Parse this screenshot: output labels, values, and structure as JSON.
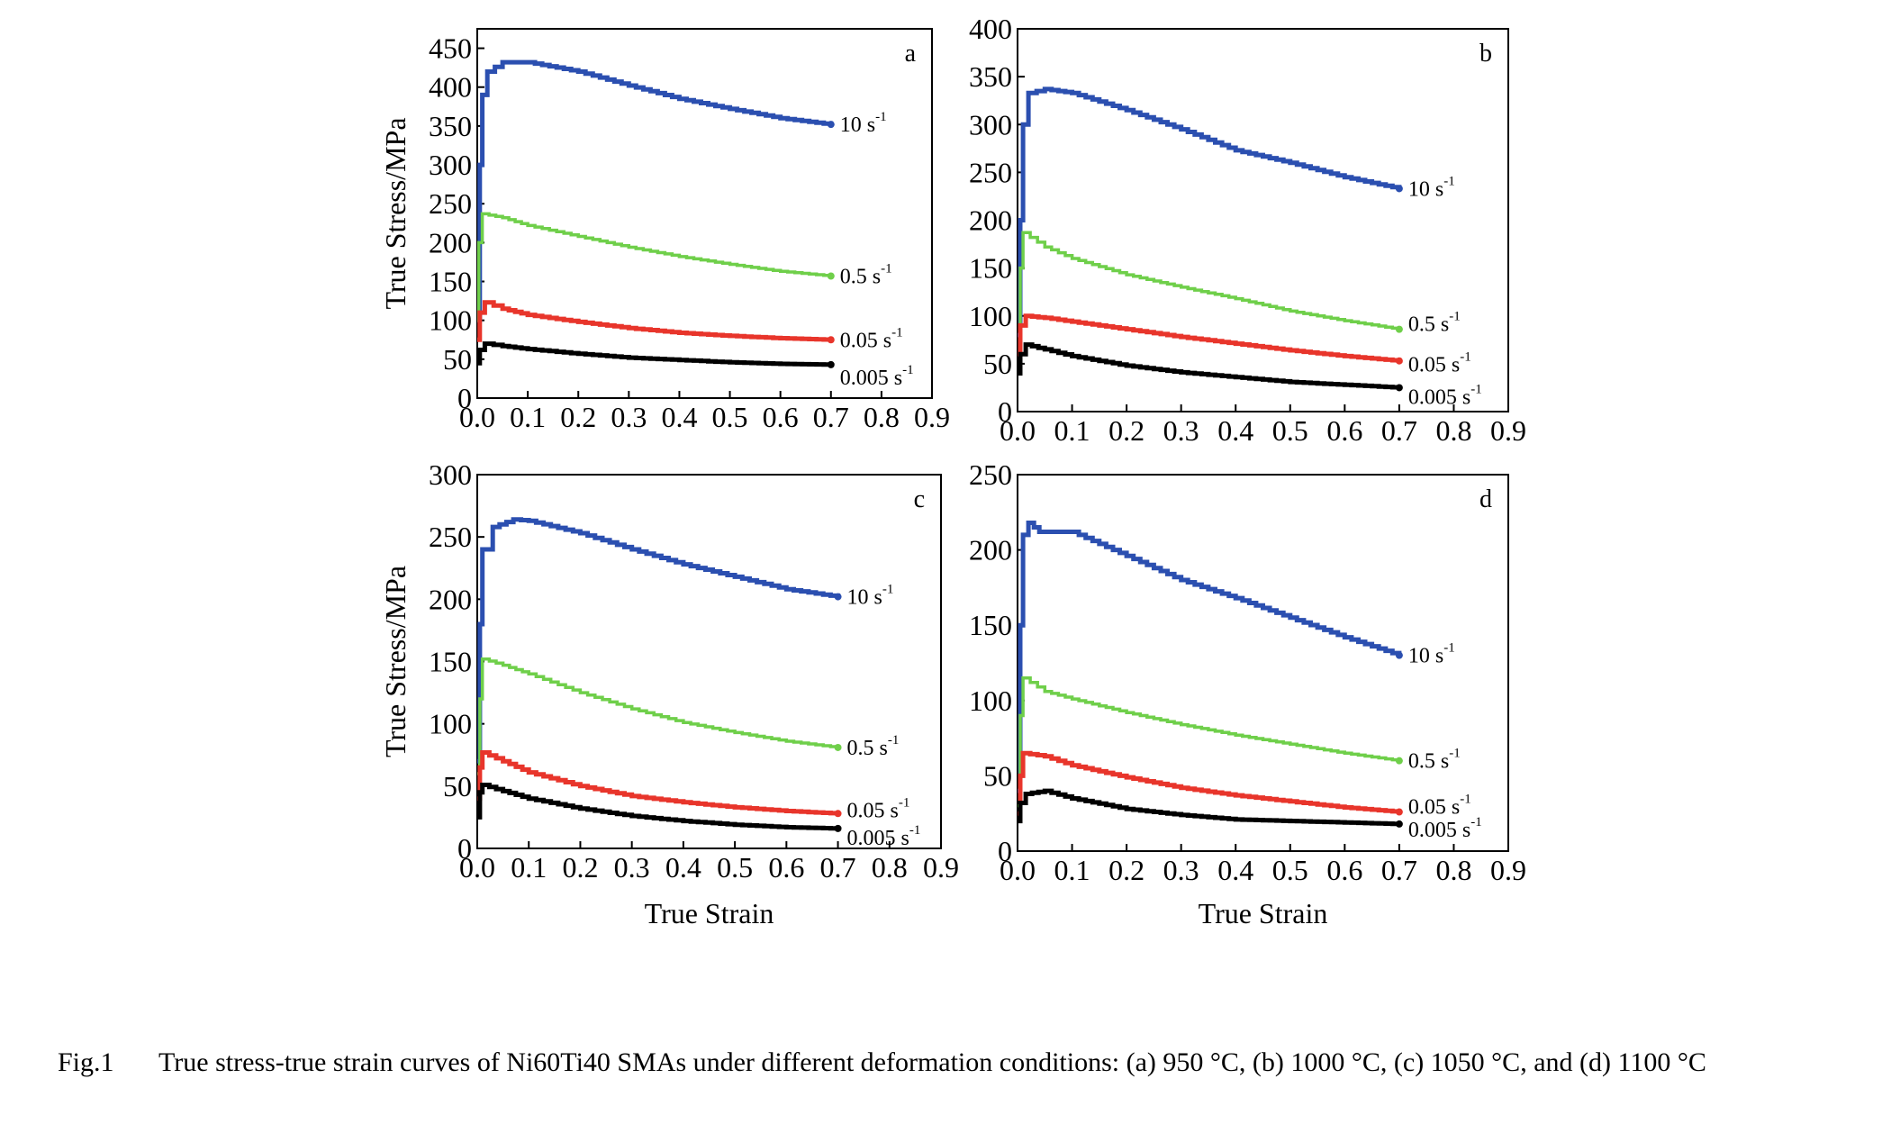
{
  "figure": {
    "caption_label": "Fig.1",
    "caption_text": "True stress-true strain curves of Ni60Ti40 SMAs under different deformation conditions: (a) 950 °C, (b) 1000 °C, (c) 1050 °C, and (d) 1100 °C"
  },
  "colors": {
    "10 s-1": "#2b4fb0",
    "0.5 s-1": "#6fcf4a",
    "0.05 s-1": "#e8352b",
    "0.005 s-1": "#000000"
  },
  "chart_data": [
    {
      "type": "line",
      "panel": "a",
      "xlabel": "",
      "ylabel": "True Stress/MPa",
      "xlim": [
        0,
        0.9
      ],
      "ylim": [
        0,
        475
      ],
      "xticks": [
        "0.0",
        "0.1",
        "0.2",
        "0.3",
        "0.4",
        "0.5",
        "0.6",
        "0.7",
        "0.8",
        "0.9"
      ],
      "yticks": [
        "0",
        "50",
        "100",
        "150",
        "200",
        "250",
        "300",
        "350",
        "400",
        "450"
      ],
      "series": [
        {
          "name": "10 s-1",
          "label_main": "10 s",
          "label_sup": "-1",
          "points": [
            [
              0,
              100
            ],
            [
              0.005,
              300
            ],
            [
              0.01,
              390
            ],
            [
              0.02,
              420
            ],
            [
              0.05,
              432
            ],
            [
              0.1,
              432
            ],
            [
              0.2,
              420
            ],
            [
              0.3,
              402
            ],
            [
              0.4,
              385
            ],
            [
              0.5,
              372
            ],
            [
              0.6,
              360
            ],
            [
              0.7,
              352
            ]
          ]
        },
        {
          "name": "0.5 s-1",
          "label_main": "0.5 s",
          "label_sup": "-1",
          "points": [
            [
              0,
              100
            ],
            [
              0.003,
              200
            ],
            [
              0.01,
              237
            ],
            [
              0.05,
              232
            ],
            [
              0.1,
              222
            ],
            [
              0.2,
              208
            ],
            [
              0.3,
              194
            ],
            [
              0.4,
              182
            ],
            [
              0.5,
              172
            ],
            [
              0.6,
              163
            ],
            [
              0.7,
              157
            ]
          ]
        },
        {
          "name": "0.05 s-1",
          "label_main": "0.05 s",
          "label_sup": "-1",
          "points": [
            [
              0,
              75
            ],
            [
              0.005,
              110
            ],
            [
              0.015,
              123
            ],
            [
              0.05,
              115
            ],
            [
              0.1,
              107
            ],
            [
              0.2,
              98
            ],
            [
              0.3,
              90
            ],
            [
              0.4,
              84
            ],
            [
              0.5,
              80
            ],
            [
              0.6,
              77
            ],
            [
              0.7,
              75
            ]
          ]
        },
        {
          "name": "0.005 s-1",
          "label_main": "0.005 s",
          "label_sup": "-1",
          "points": [
            [
              0,
              45
            ],
            [
              0.005,
              62
            ],
            [
              0.015,
              70
            ],
            [
              0.05,
              67
            ],
            [
              0.1,
              63
            ],
            [
              0.2,
              57
            ],
            [
              0.3,
              52
            ],
            [
              0.4,
              49
            ],
            [
              0.5,
              46
            ],
            [
              0.6,
              44
            ],
            [
              0.7,
              43
            ]
          ]
        }
      ]
    },
    {
      "type": "line",
      "panel": "b",
      "xlabel": "",
      "ylabel": "",
      "xlim": [
        0,
        0.9
      ],
      "ylim": [
        0,
        400
      ],
      "xticks": [
        "0.0",
        "0.1",
        "0.2",
        "0.3",
        "0.4",
        "0.5",
        "0.6",
        "0.7",
        "0.8",
        "0.9"
      ],
      "yticks": [
        "0",
        "50",
        "100",
        "150",
        "200",
        "250",
        "300",
        "350",
        "400"
      ],
      "series": [
        {
          "name": "10 s-1",
          "label_main": "10 s",
          "label_sup": "-1",
          "points": [
            [
              0,
              80
            ],
            [
              0.005,
              200
            ],
            [
              0.01,
              300
            ],
            [
              0.02,
              333
            ],
            [
              0.05,
              337
            ],
            [
              0.1,
              333
            ],
            [
              0.2,
              315
            ],
            [
              0.3,
              295
            ],
            [
              0.4,
              273
            ],
            [
              0.5,
              260
            ],
            [
              0.6,
              245
            ],
            [
              0.7,
              233
            ]
          ]
        },
        {
          "name": "0.5 s-1",
          "label_main": "0.5 s",
          "label_sup": "-1",
          "points": [
            [
              0,
              60
            ],
            [
              0.005,
              150
            ],
            [
              0.01,
              187
            ],
            [
              0.05,
              172
            ],
            [
              0.1,
              160
            ],
            [
              0.2,
              143
            ],
            [
              0.3,
              130
            ],
            [
              0.4,
              118
            ],
            [
              0.5,
              105
            ],
            [
              0.6,
              95
            ],
            [
              0.7,
              86
            ]
          ]
        },
        {
          "name": "0.05 s-1",
          "label_main": "0.05 s",
          "label_sup": "-1",
          "points": [
            [
              0,
              60
            ],
            [
              0.005,
              90
            ],
            [
              0.015,
              100
            ],
            [
              0.05,
              98
            ],
            [
              0.1,
              94
            ],
            [
              0.2,
              86
            ],
            [
              0.3,
              78
            ],
            [
              0.4,
              71
            ],
            [
              0.5,
              64
            ],
            [
              0.6,
              58
            ],
            [
              0.7,
              53
            ]
          ]
        },
        {
          "name": "0.005 s-1",
          "label_main": "0.005 s",
          "label_sup": "-1",
          "points": [
            [
              0,
              40
            ],
            [
              0.005,
              60
            ],
            [
              0.015,
              70
            ],
            [
              0.05,
              65
            ],
            [
              0.1,
              58
            ],
            [
              0.2,
              48
            ],
            [
              0.3,
              41
            ],
            [
              0.4,
              36
            ],
            [
              0.5,
              31
            ],
            [
              0.6,
              28
            ],
            [
              0.7,
              25
            ]
          ]
        }
      ]
    },
    {
      "type": "line",
      "panel": "c",
      "xlabel": "True Strain",
      "ylabel": "True Stress/MPa",
      "xlim": [
        0,
        0.9
      ],
      "ylim": [
        0,
        300
      ],
      "xticks": [
        "0.0",
        "0.1",
        "0.2",
        "0.3",
        "0.4",
        "0.5",
        "0.6",
        "0.7",
        "0.8",
        "0.9"
      ],
      "yticks": [
        "0",
        "50",
        "100",
        "150",
        "200",
        "250",
        "300"
      ],
      "series": [
        {
          "name": "10 s-1",
          "label_main": "10 s",
          "label_sup": "-1",
          "points": [
            [
              0,
              70
            ],
            [
              0.005,
              180
            ],
            [
              0.01,
              240
            ],
            [
              0.03,
              258
            ],
            [
              0.07,
              264
            ],
            [
              0.1,
              263
            ],
            [
              0.2,
              253
            ],
            [
              0.3,
              240
            ],
            [
              0.4,
              228
            ],
            [
              0.5,
              218
            ],
            [
              0.6,
              208
            ],
            [
              0.7,
              202
            ]
          ]
        },
        {
          "name": "0.5 s-1",
          "label_main": "0.5 s",
          "label_sup": "-1",
          "points": [
            [
              0,
              60
            ],
            [
              0.005,
              120
            ],
            [
              0.01,
              152
            ],
            [
              0.05,
              147
            ],
            [
              0.1,
              140
            ],
            [
              0.2,
              125
            ],
            [
              0.3,
              112
            ],
            [
              0.4,
              101
            ],
            [
              0.5,
              93
            ],
            [
              0.6,
              86
            ],
            [
              0.7,
              81
            ]
          ]
        },
        {
          "name": "0.05 s-1",
          "label_main": "0.05 s",
          "label_sup": "-1",
          "points": [
            [
              0,
              40
            ],
            [
              0.005,
              65
            ],
            [
              0.01,
              77
            ],
            [
              0.05,
              70
            ],
            [
              0.1,
              61
            ],
            [
              0.2,
              50
            ],
            [
              0.3,
              42
            ],
            [
              0.4,
              37
            ],
            [
              0.5,
              33
            ],
            [
              0.6,
              30
            ],
            [
              0.7,
              28
            ]
          ]
        },
        {
          "name": "0.005 s-1",
          "label_main": "0.005 s",
          "label_sup": "-1",
          "points": [
            [
              0,
              25
            ],
            [
              0.005,
              45
            ],
            [
              0.01,
              51
            ],
            [
              0.05,
              46
            ],
            [
              0.1,
              40
            ],
            [
              0.2,
              32
            ],
            [
              0.3,
              26
            ],
            [
              0.4,
              22
            ],
            [
              0.5,
              19
            ],
            [
              0.6,
              17
            ],
            [
              0.7,
              16
            ]
          ]
        }
      ]
    },
    {
      "type": "line",
      "panel": "d",
      "xlabel": "True Strain",
      "ylabel": "",
      "xlim": [
        0,
        0.9
      ],
      "ylim": [
        0,
        250
      ],
      "xticks": [
        "0.0",
        "0.1",
        "0.2",
        "0.3",
        "0.4",
        "0.5",
        "0.6",
        "0.7",
        "0.8",
        "0.9"
      ],
      "yticks": [
        "0",
        "50",
        "100",
        "150",
        "200",
        "250"
      ],
      "series": [
        {
          "name": "10 s-1",
          "label_main": "10 s",
          "label_sup": "-1",
          "points": [
            [
              0,
              40
            ],
            [
              0.005,
              150
            ],
            [
              0.01,
              210
            ],
            [
              0.02,
              218
            ],
            [
              0.04,
              212
            ],
            [
              0.1,
              212
            ],
            [
              0.2,
              196
            ],
            [
              0.3,
              180
            ],
            [
              0.4,
              168
            ],
            [
              0.5,
              155
            ],
            [
              0.6,
              142
            ],
            [
              0.7,
              130
            ]
          ]
        },
        {
          "name": "0.5 s-1",
          "label_main": "0.5 s",
          "label_sup": "-1",
          "points": [
            [
              0,
              30
            ],
            [
              0.005,
              90
            ],
            [
              0.01,
              115
            ],
            [
              0.05,
              106
            ],
            [
              0.1,
              101
            ],
            [
              0.2,
              92
            ],
            [
              0.3,
              84
            ],
            [
              0.4,
              77
            ],
            [
              0.5,
              71
            ],
            [
              0.6,
              65
            ],
            [
              0.7,
              60
            ]
          ]
        },
        {
          "name": "0.05 s-1",
          "label_main": "0.05 s",
          "label_sup": "-1",
          "points": [
            [
              0,
              25
            ],
            [
              0.005,
              50
            ],
            [
              0.01,
              65
            ],
            [
              0.05,
              63
            ],
            [
              0.1,
              57
            ],
            [
              0.2,
              49
            ],
            [
              0.3,
              42
            ],
            [
              0.4,
              37
            ],
            [
              0.5,
              33
            ],
            [
              0.6,
              29
            ],
            [
              0.7,
              26
            ]
          ]
        },
        {
          "name": "0.005 s-1",
          "label_main": "0.005 s",
          "label_sup": "-1",
          "points": [
            [
              0,
              20
            ],
            [
              0.005,
              32
            ],
            [
              0.015,
              38
            ],
            [
              0.05,
              40
            ],
            [
              0.1,
              35
            ],
            [
              0.2,
              28
            ],
            [
              0.3,
              24
            ],
            [
              0.4,
              21
            ],
            [
              0.5,
              20
            ],
            [
              0.6,
              19
            ],
            [
              0.7,
              18
            ]
          ]
        }
      ]
    }
  ]
}
